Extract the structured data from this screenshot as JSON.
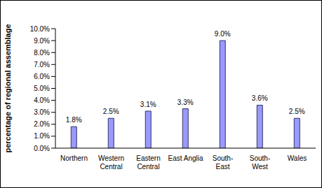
{
  "chart_data": {
    "type": "bar",
    "y_label": "percentage of regional assemblage",
    "categories": [
      "Northern",
      "Western Central",
      "Eastern Central",
      "East Anglia",
      "South-East",
      "South-West",
      "Wales"
    ],
    "values": [
      1.8,
      2.5,
      3.1,
      3.3,
      9.0,
      3.6,
      2.5
    ],
    "value_labels": [
      "1.8%",
      "2.5%",
      "3.1%",
      "3.3%",
      "9.0%",
      "3.6%",
      "2.5%"
    ],
    "color": "#9999ff",
    "ylim": [
      0,
      10
    ],
    "yticks": [
      {
        "value": 0,
        "label": "0.0%"
      },
      {
        "value": 1,
        "label": "1.0%"
      },
      {
        "value": 2,
        "label": "2.0%"
      },
      {
        "value": 3,
        "label": "3.0%"
      },
      {
        "value": 4,
        "label": "4.0%"
      },
      {
        "value": 5,
        "label": "5.0%"
      },
      {
        "value": 6,
        "label": "6.0%"
      },
      {
        "value": 7,
        "label": "7.0%"
      },
      {
        "value": 8,
        "label": "8.0%"
      },
      {
        "value": 9,
        "label": "9.0%"
      },
      {
        "value": 10,
        "label": "10.0%"
      }
    ],
    "grid": false,
    "data_labels": true
  }
}
